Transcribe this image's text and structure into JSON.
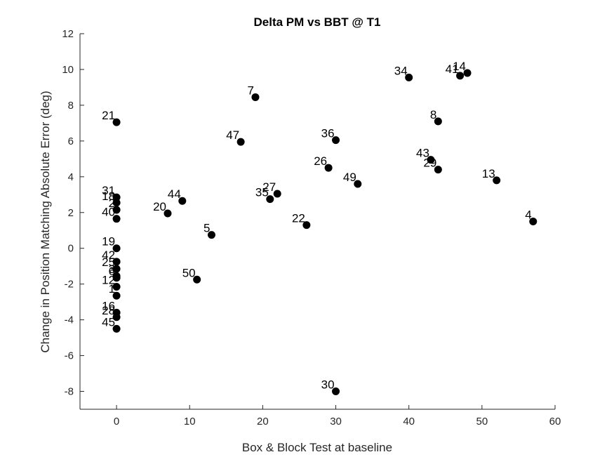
{
  "chart_data": {
    "type": "scatter",
    "title": "Delta PM vs BBT @ T1",
    "xlabel": "Box & Block Test at baseline",
    "ylabel": "Change in Position Matching Absolute Error (deg)",
    "xlim": [
      -5,
      60
    ],
    "ylim": [
      -9,
      12
    ],
    "xticks": [
      0,
      10,
      20,
      30,
      40,
      50,
      60
    ],
    "yticks": [
      -8,
      -6,
      -4,
      -2,
      0,
      2,
      4,
      6,
      8,
      10,
      12
    ],
    "grid": false,
    "marker_color": "#000000",
    "points": [
      {
        "label": "21",
        "x": 0,
        "y": 7.05
      },
      {
        "label": "31",
        "x": 0,
        "y": 2.85
      },
      {
        "label": "18",
        "x": 0,
        "y": 2.55
      },
      {
        "label": "2",
        "x": 0,
        "y": 2.15
      },
      {
        "label": "40",
        "x": 0,
        "y": 1.65
      },
      {
        "label": "19",
        "x": 0,
        "y": 0.0
      },
      {
        "label": "42",
        "x": 0,
        "y": -0.75
      },
      {
        "label": "25",
        "x": 0,
        "y": -1.15
      },
      {
        "label": "3",
        "x": 0,
        "y": -1.55
      },
      {
        "label": "6",
        "x": 0,
        "y": -1.65
      },
      {
        "label": "12",
        "x": 0,
        "y": -2.15
      },
      {
        "label": "1",
        "x": 0,
        "y": -2.65
      },
      {
        "label": "16",
        "x": 0,
        "y": -3.6
      },
      {
        "label": "28",
        "x": 0,
        "y": -3.85
      },
      {
        "label": "45",
        "x": 0,
        "y": -4.5
      },
      {
        "label": "20",
        "x": 7,
        "y": 1.95
      },
      {
        "label": "44",
        "x": 9,
        "y": 2.65
      },
      {
        "label": "50",
        "x": 11,
        "y": -1.75
      },
      {
        "label": "5",
        "x": 13,
        "y": 0.75
      },
      {
        "label": "47",
        "x": 17,
        "y": 5.95
      },
      {
        "label": "7",
        "x": 19,
        "y": 8.45
      },
      {
        "label": "35",
        "x": 21,
        "y": 2.75
      },
      {
        "label": "27",
        "x": 22,
        "y": 3.05
      },
      {
        "label": "22",
        "x": 26,
        "y": 1.3
      },
      {
        "label": "26",
        "x": 29,
        "y": 4.5
      },
      {
        "label": "36",
        "x": 30,
        "y": 6.05
      },
      {
        "label": "30",
        "x": 30,
        "y": -8.0
      },
      {
        "label": "49",
        "x": 33,
        "y": 3.6
      },
      {
        "label": "34",
        "x": 40,
        "y": 9.55
      },
      {
        "label": "43",
        "x": 43,
        "y": 4.95
      },
      {
        "label": "29",
        "x": 44,
        "y": 4.4
      },
      {
        "label": "8",
        "x": 44,
        "y": 7.1
      },
      {
        "label": "41",
        "x": 47,
        "y": 9.65
      },
      {
        "label": "14",
        "x": 48,
        "y": 9.8
      },
      {
        "label": "13",
        "x": 52,
        "y": 3.8
      },
      {
        "label": "4",
        "x": 57,
        "y": 1.5
      }
    ]
  }
}
